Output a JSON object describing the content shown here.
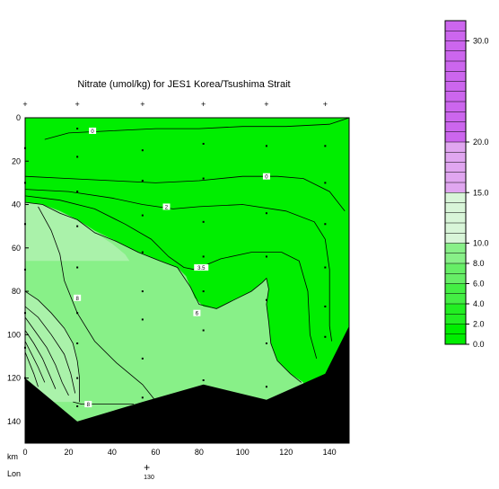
{
  "chart_data": {
    "type": "contour",
    "title": "Nitrate (umol/kg) for JES1 Korea/Tsushima Strait",
    "xlabel": "km",
    "ylabel": "",
    "x_ticks": [
      0,
      20,
      40,
      60,
      80,
      100,
      120,
      140
    ],
    "y_ticks": [
      0,
      20,
      40,
      60,
      80,
      100,
      120,
      140
    ],
    "xlim": [
      0,
      149
    ],
    "ylim": [
      150,
      0
    ],
    "lon_label": "Lon",
    "lon_tick_value": "130",
    "lon_tick_km": 56,
    "colorbar": {
      "ticks": [
        "0.0",
        "2.0",
        "4.0",
        "6.0",
        "8.0",
        "10.0",
        "15.0",
        "20.0",
        "30.0"
      ],
      "tick_values": [
        0,
        2,
        4,
        6,
        8,
        10,
        15,
        20,
        30
      ],
      "range": [
        0,
        32
      ]
    },
    "contour_labels": [
      {
        "text": "0",
        "x": 31,
        "y": 6
      },
      {
        "text": "0",
        "x": 111,
        "y": 27
      },
      {
        "text": "2",
        "x": 65,
        "y": 41
      },
      {
        "text": "3.5",
        "x": 81,
        "y": 69
      },
      {
        "text": "6",
        "x": 79,
        "y": 90
      },
      {
        "text": "8",
        "x": 24,
        "y": 83
      },
      {
        "text": "8",
        "x": 29,
        "y": 132
      }
    ],
    "stations_km": [
      0,
      24,
      54,
      82,
      111,
      138
    ],
    "sample_points": [
      [
        0,
        14
      ],
      [
        0,
        30
      ],
      [
        0,
        49
      ],
      [
        0,
        70
      ],
      [
        0,
        90
      ],
      [
        0,
        106
      ],
      [
        0,
        120
      ],
      [
        24,
        5
      ],
      [
        24,
        18
      ],
      [
        24,
        34
      ],
      [
        24,
        50
      ],
      [
        24,
        69
      ],
      [
        24,
        90
      ],
      [
        24,
        104
      ],
      [
        24,
        120
      ],
      [
        24,
        133
      ],
      [
        54,
        15
      ],
      [
        54,
        29
      ],
      [
        54,
        45
      ],
      [
        54,
        62
      ],
      [
        54,
        80
      ],
      [
        54,
        93
      ],
      [
        54,
        111
      ],
      [
        54,
        129
      ],
      [
        82,
        12
      ],
      [
        82,
        28
      ],
      [
        82,
        48
      ],
      [
        82,
        64
      ],
      [
        82,
        80
      ],
      [
        82,
        98
      ],
      [
        82,
        121
      ],
      [
        111,
        13
      ],
      [
        111,
        44
      ],
      [
        111,
        64
      ],
      [
        111,
        84
      ],
      [
        111,
        104
      ],
      [
        111,
        124
      ],
      [
        138,
        13
      ],
      [
        138,
        30
      ],
      [
        138,
        49
      ],
      [
        138,
        69
      ],
      [
        138,
        87
      ],
      [
        138,
        101
      ]
    ],
    "bottom_depth": [
      [
        0,
        120
      ],
      [
        24,
        140
      ],
      [
        54,
        131
      ],
      [
        82,
        123
      ],
      [
        111,
        130
      ],
      [
        138,
        118
      ],
      [
        149,
        96
      ]
    ],
    "colors": {
      "level_0_2": "#00ee00",
      "level_2_4": "#22ee22",
      "level_4_6": "#44ee44",
      "level_6_8": "#66ee66",
      "level_8_10": "#88f088",
      "level_10_15": "#aaf2aa",
      "level_15_20": "#e0a6f0",
      "level_20_30": "#cc66ee",
      "pale_band": "#d8f5d8",
      "bottom": "#000000"
    }
  }
}
